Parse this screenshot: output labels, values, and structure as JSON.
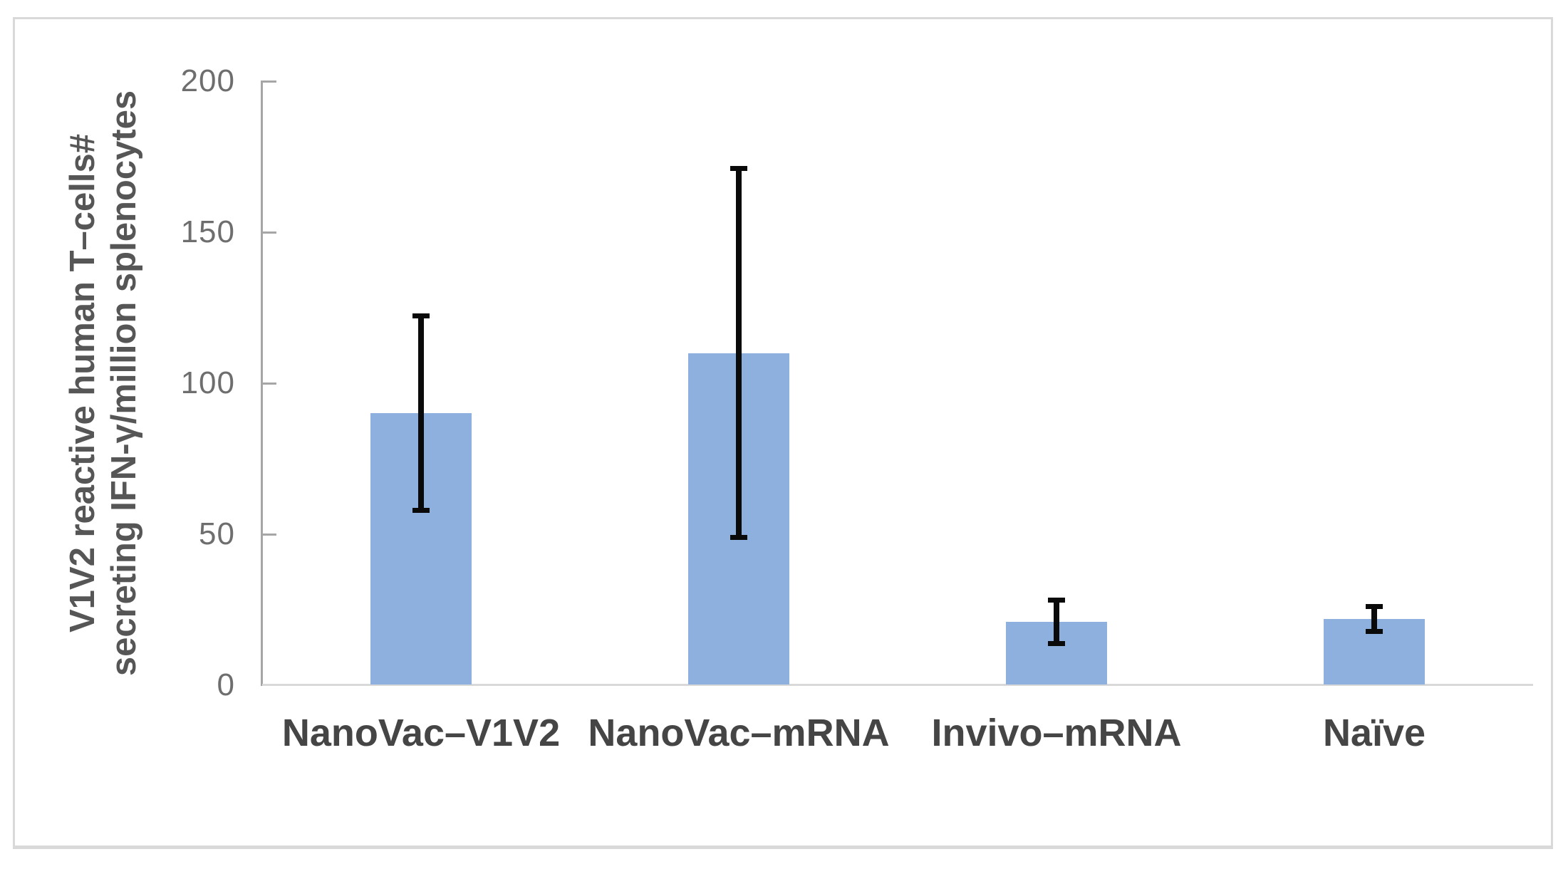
{
  "chart_data": {
    "type": "bar",
    "categories": [
      "NanoVac–V1V2",
      "NanoVac–mRNA",
      "Invivo–mRNA",
      "Naïve"
    ],
    "values": [
      90,
      110,
      21,
      22
    ],
    "error_plus": [
      33,
      62,
      8,
      5
    ],
    "error_minus": [
      33,
      62,
      8,
      5
    ],
    "title": "",
    "xlabel": "",
    "ylabel_line1": "V1V2 reactive human T–cells#",
    "ylabel_line2": "secreting IFN-γ/million splenocytes",
    "yticks": [
      0,
      50,
      100,
      150,
      200
    ],
    "ylim": [
      0,
      200
    ],
    "grid": false,
    "legend": "none",
    "bar_color": "#8DB0DF",
    "error_color": "#0A0A0A",
    "axis_color": "#A6A6A6",
    "baseline_color": "#D9D9D9",
    "tick_label_color": "#6E6E6E",
    "category_label_color": "#454545"
  }
}
